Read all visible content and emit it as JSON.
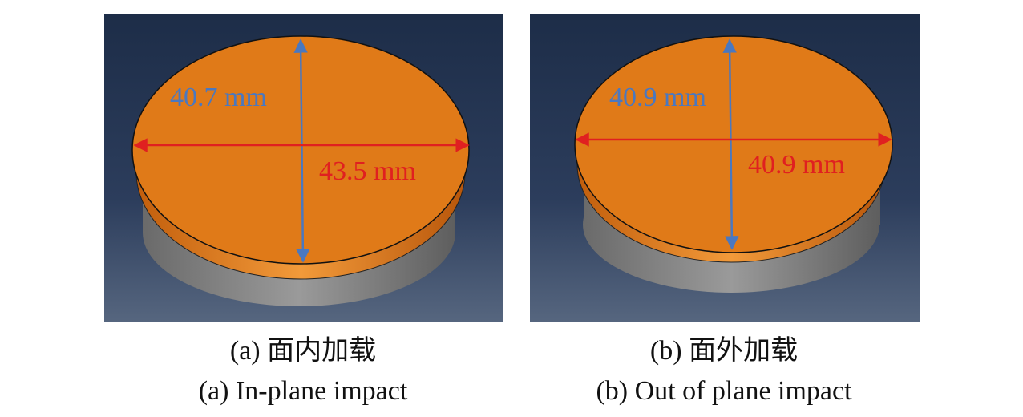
{
  "panels": [
    {
      "vertical_dimension": "40.7 mm",
      "horizontal_dimension": "43.5 mm",
      "caption_zh": "(a) 面内加载",
      "caption_en": "(a) In-plane impact"
    },
    {
      "vertical_dimension": "40.9 mm",
      "horizontal_dimension": "40.9 mm",
      "caption_zh": "(b) 面外加载",
      "caption_en": "(b) Out of plane impact"
    }
  ]
}
